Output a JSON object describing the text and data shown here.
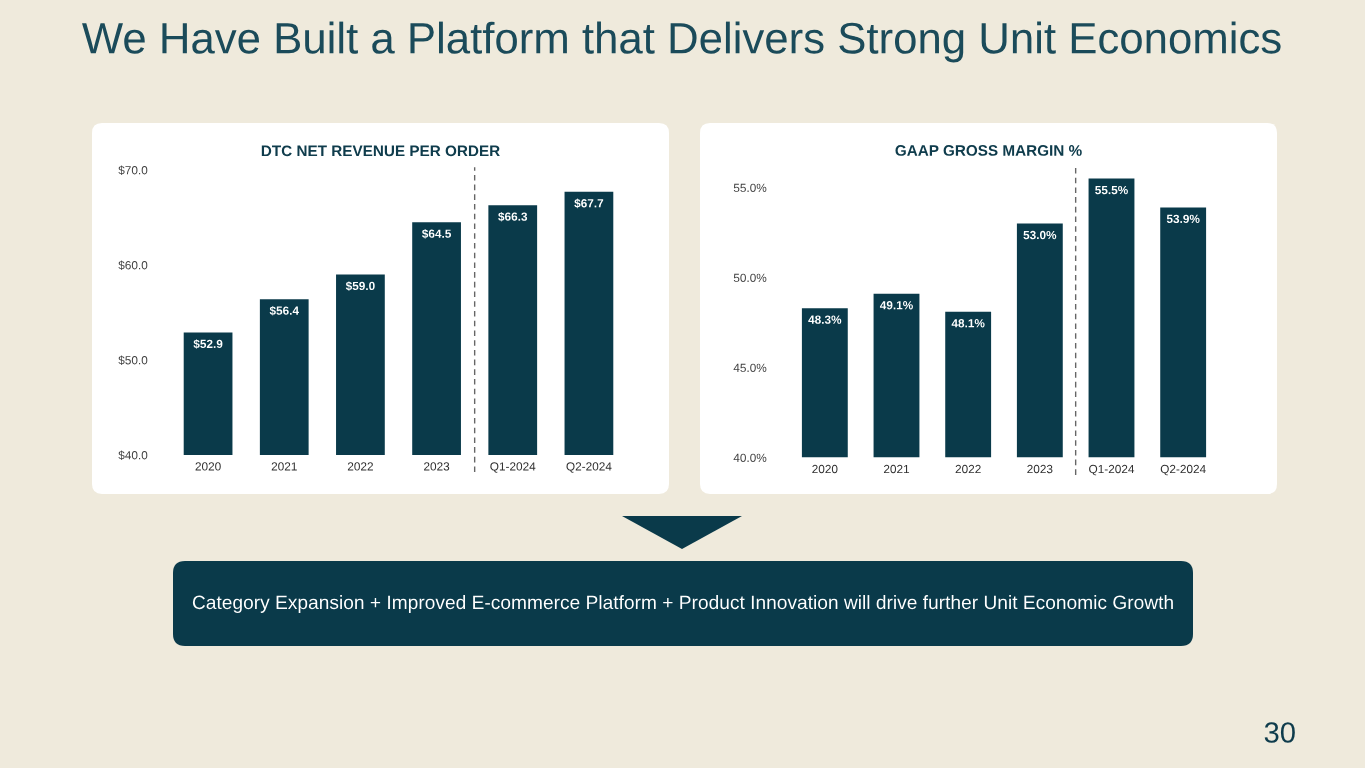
{
  "chart_data": [
    {
      "type": "other",
      "title": "We Have Built a Platform that Delivers Strong Unit Economics",
      "annotations": [
        "Category Expansion + Improved E-commerce Platform + Product Innovation will drive further Unit Economic Growth",
        "30"
      ]
    },
    {
      "type": "bar",
      "title": "DTC NET REVENUE PER ORDER",
      "categories": [
        "2020",
        "2021",
        "2022",
        "2023",
        "Q1-2024",
        "Q2-2024"
      ],
      "values": [
        52.9,
        56.4,
        59.0,
        64.5,
        66.3,
        67.7
      ],
      "value_labels": [
        "$52.9",
        "$56.4",
        "$59.0",
        "$64.5",
        "$66.3",
        "$67.7"
      ],
      "color": "#0a3a4a",
      "ylim": [
        40,
        70
      ],
      "yticks": [
        {
          "value": 40,
          "label": "$40.0"
        },
        {
          "value": 50,
          "label": "$50.0"
        },
        {
          "value": 60,
          "label": "$60.0"
        },
        {
          "value": 70,
          "label": "$70.0"
        }
      ]
    },
    {
      "type": "bar",
      "title": "GAAP GROSS MARGIN %",
      "categories": [
        "2020",
        "2021",
        "2022",
        "2023",
        "Q1-2024",
        "Q2-2024"
      ],
      "values": [
        48.3,
        49.1,
        48.1,
        53.0,
        55.5,
        53.9
      ],
      "value_labels": [
        "48.3%",
        "49.1%",
        "48.1%",
        "53.0%",
        "55.5%",
        "53.9%"
      ],
      "color": "#0a3a4a",
      "ylim": [
        40,
        56
      ],
      "yticks": [
        {
          "value": 40,
          "label": "40.0%"
        },
        {
          "value": 45,
          "label": "45.0%"
        },
        {
          "value": 50,
          "label": "50.0%"
        },
        {
          "value": 55,
          "label": "55.0%"
        }
      ]
    }
  ]
}
